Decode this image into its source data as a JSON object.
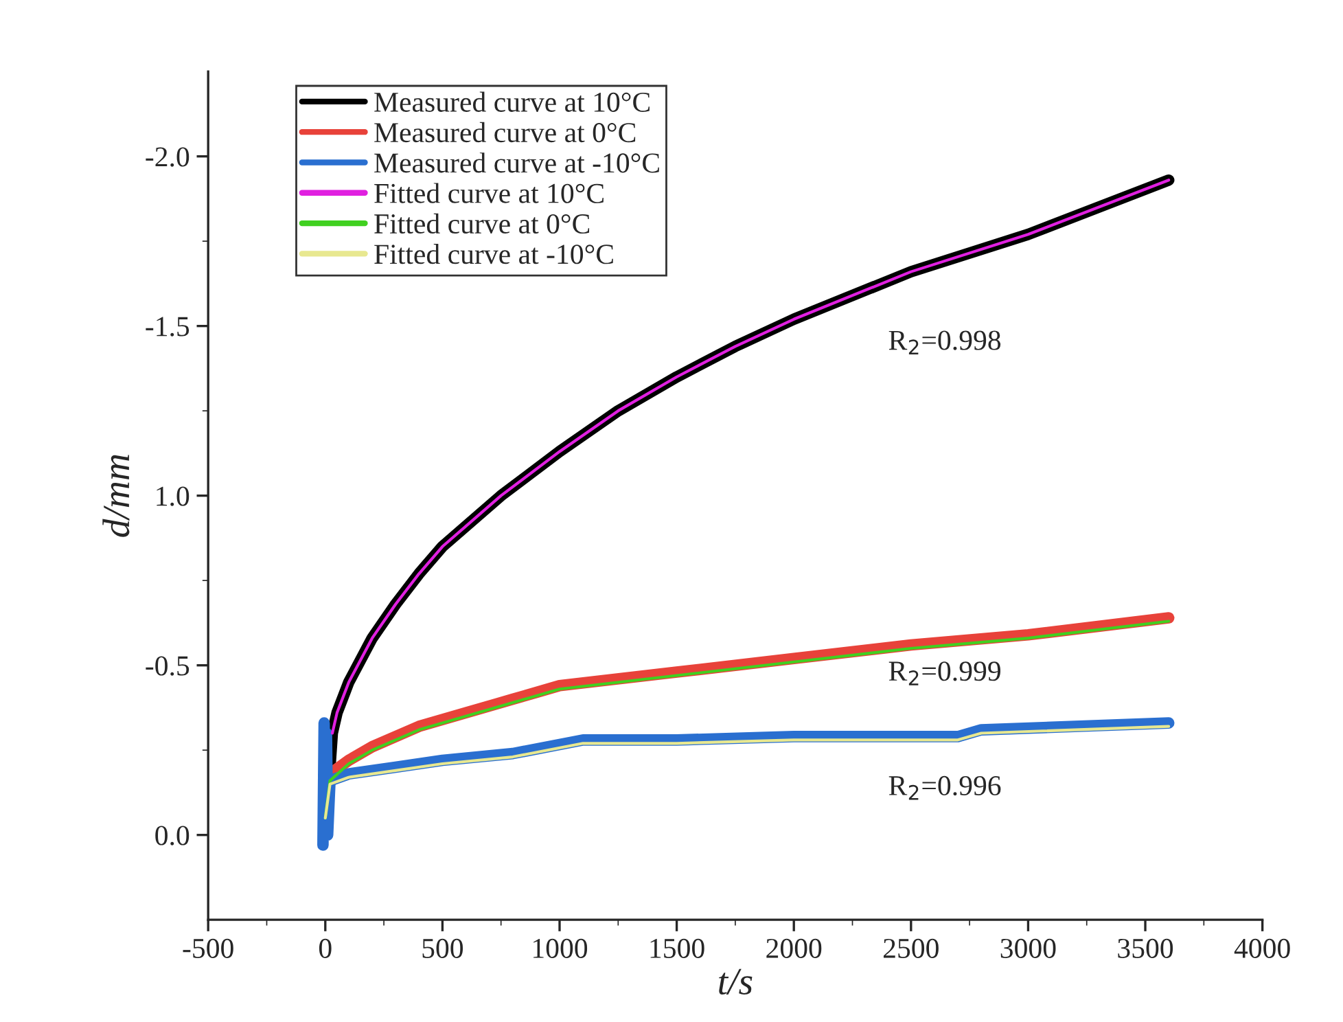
{
  "chart_data": {
    "type": "line",
    "xlabel": "t/s",
    "ylabel": "d/mm",
    "xlim": [
      -500,
      4000
    ],
    "ylim": [
      0.25,
      -2.25
    ],
    "xticks": [
      -500,
      0,
      500,
      1000,
      1500,
      2000,
      2500,
      3000,
      3500,
      4000
    ],
    "yticks": [
      {
        "value": 0,
        "label": "0.0"
      },
      {
        "value": -0.5,
        "label": "-0.5"
      },
      {
        "value": -1.0,
        "label": "1.0"
      },
      {
        "value": -1.5,
        "label": "-1.5"
      },
      {
        "value": -2.0,
        "label": "-2.0"
      }
    ],
    "grid": false,
    "legend": "top left",
    "line_style": "solid",
    "marker": "none",
    "series": [
      {
        "name": "Measured curve at 10°C",
        "color": "#000000",
        "x": [
          0,
          30,
          50,
          100,
          200,
          300,
          400,
          500,
          750,
          1000,
          1250,
          1500,
          1750,
          2000,
          2500,
          3000,
          3600
        ],
        "values": [
          0,
          -0.3,
          -0.36,
          -0.45,
          -0.58,
          -0.68,
          -0.77,
          -0.85,
          -1.0,
          -1.13,
          -1.25,
          -1.35,
          -1.44,
          -1.52,
          -1.66,
          -1.77,
          -1.93
        ]
      },
      {
        "name": "Measured curve at 0°C",
        "color": "#e8423a",
        "x": [
          0,
          20,
          100,
          200,
          400,
          600,
          800,
          1000,
          1500,
          2000,
          2500,
          3000,
          3600
        ],
        "values": [
          0,
          -0.18,
          -0.22,
          -0.26,
          -0.32,
          -0.36,
          -0.4,
          -0.44,
          -0.48,
          -0.52,
          -0.56,
          -0.59,
          -0.64
        ]
      },
      {
        "name": "Measured curve at -10°C",
        "color": "#2a6fd0",
        "x": [
          -10,
          -5,
          0,
          5,
          10,
          20,
          100,
          300,
          500,
          800,
          1100,
          1500,
          2000,
          2700,
          2800,
          3600
        ],
        "values": [
          0.03,
          -0.33,
          -0.1,
          -0.3,
          0,
          -0.16,
          -0.18,
          -0.2,
          -0.22,
          -0.24,
          -0.28,
          -0.28,
          -0.29,
          -0.29,
          -0.31,
          -0.33
        ]
      },
      {
        "name": "Fitted curve at 10°C",
        "color": "#e020e0",
        "x": [
          30,
          50,
          100,
          200,
          300,
          400,
          500,
          750,
          1000,
          1250,
          1500,
          1750,
          2000,
          2500,
          3000,
          3600
        ],
        "values": [
          -0.3,
          -0.36,
          -0.45,
          -0.58,
          -0.68,
          -0.77,
          -0.85,
          -1.0,
          -1.13,
          -1.25,
          -1.35,
          -1.44,
          -1.52,
          -1.66,
          -1.77,
          -1.93
        ]
      },
      {
        "name": "Fitted curve at 0°C",
        "color": "#40d020",
        "x": [
          0,
          20,
          100,
          200,
          400,
          600,
          800,
          1000,
          1500,
          2000,
          2500,
          3000,
          3600
        ],
        "values": [
          -0.05,
          -0.16,
          -0.21,
          -0.25,
          -0.31,
          -0.35,
          -0.39,
          -0.43,
          -0.47,
          -0.51,
          -0.55,
          -0.58,
          -0.63
        ]
      },
      {
        "name": "Fitted curve at -10°C",
        "color": "#e8e890",
        "x": [
          0,
          20,
          100,
          300,
          500,
          800,
          1100,
          1500,
          2000,
          2700,
          2800,
          3600
        ],
        "values": [
          -0.05,
          -0.15,
          -0.17,
          -0.19,
          -0.21,
          -0.23,
          -0.27,
          -0.27,
          -0.28,
          -0.28,
          -0.3,
          -0.32
        ]
      }
    ],
    "annotations": [
      "R$_{2}$=0.998",
      "R$_{2}$=0.999",
      "R$_{2}$=0.996"
    ]
  }
}
